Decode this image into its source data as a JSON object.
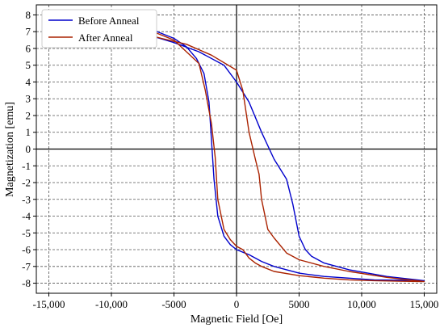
{
  "chart_data": {
    "type": "line",
    "xlabel": "Magnetic Field [Oe]",
    "ylabel": "Magnetization [emu]",
    "xlim": [
      -16000,
      16000
    ],
    "ylim": [
      -8.6,
      8.6
    ],
    "x_ticks": [
      -15000,
      -10000,
      -5000,
      0,
      5000,
      10000,
      15000
    ],
    "x_tick_labels": [
      "-15,000",
      "-10,000",
      "-5000",
      "0",
      "5000",
      "10,000",
      "15,000"
    ],
    "y_ticks": [
      -8,
      -7,
      -6,
      -5,
      -4,
      -3,
      -2,
      -1,
      0,
      1,
      2,
      3,
      4,
      5,
      6,
      7,
      8
    ],
    "y_tick_labels": [
      "-8",
      "-7",
      "-6",
      "-5",
      "-4",
      "-3",
      "-2",
      "-1",
      "0",
      "1",
      "2",
      "3",
      "4",
      "5",
      "6",
      "7",
      "8"
    ],
    "grid": true,
    "legend_position": "top-left",
    "series": [
      {
        "name": "Before Anneal",
        "color": "#0000cc",
        "x": [
          -15000,
          -12000,
          -9000,
          -7000,
          -5000,
          -4000,
          -3200,
          -2600,
          -2200,
          -2000,
          -1800,
          -1500,
          -1000,
          -500,
          0,
          1000,
          2000,
          3000,
          4000,
          5000,
          6000,
          7000,
          9000,
          11000,
          13000,
          15000,
          12000,
          9000,
          7000,
          6000,
          5500,
          5000,
          4500,
          4000,
          3000,
          2000,
          1000,
          0,
          -1000,
          -3000,
          -5000,
          -7000,
          -10000,
          -13000,
          -15000
        ],
        "y": [
          7.85,
          7.75,
          7.5,
          7.2,
          6.6,
          6.1,
          5.4,
          4.5,
          2.8,
          0.5,
          -1.8,
          -4.0,
          -5.2,
          -5.7,
          -6.0,
          -6.3,
          -6.7,
          -7.0,
          -7.2,
          -7.4,
          -7.5,
          -7.6,
          -7.7,
          -7.8,
          -7.82,
          -7.85,
          -7.6,
          -7.2,
          -6.8,
          -6.4,
          -6.0,
          -5.2,
          -3.3,
          -1.8,
          -0.6,
          1.0,
          2.8,
          4.0,
          5.0,
          5.8,
          6.35,
          6.8,
          7.2,
          7.55,
          7.85
        ]
      },
      {
        "name": "After Anneal",
        "color": "#aa2200",
        "x": [
          -15000,
          -12000,
          -9000,
          -7000,
          -5000,
          -4000,
          -3000,
          -2500,
          -2000,
          -1700,
          -1500,
          -1000,
          -500,
          0,
          500,
          1000,
          1500,
          2000,
          3000,
          5000,
          7000,
          9000,
          11000,
          13000,
          15000,
          12000,
          9000,
          7000,
          5000,
          4000,
          3000,
          2500,
          2000,
          1800,
          1500,
          1000,
          500,
          0,
          -2000,
          -4000,
          -6000,
          -8000,
          -11000,
          -15000
        ],
        "y": [
          7.9,
          7.75,
          7.45,
          7.1,
          6.5,
          5.8,
          5.1,
          3.5,
          1.5,
          -0.5,
          -3.0,
          -4.8,
          -5.4,
          -5.8,
          -6.0,
          -6.5,
          -6.8,
          -7.0,
          -7.3,
          -7.55,
          -7.7,
          -7.8,
          -7.85,
          -7.88,
          -7.9,
          -7.65,
          -7.3,
          -7.0,
          -6.6,
          -6.2,
          -5.3,
          -4.8,
          -3.0,
          -1.5,
          -0.6,
          1.0,
          3.5,
          4.7,
          5.6,
          6.25,
          6.6,
          7.0,
          7.4,
          7.9
        ]
      }
    ]
  }
}
